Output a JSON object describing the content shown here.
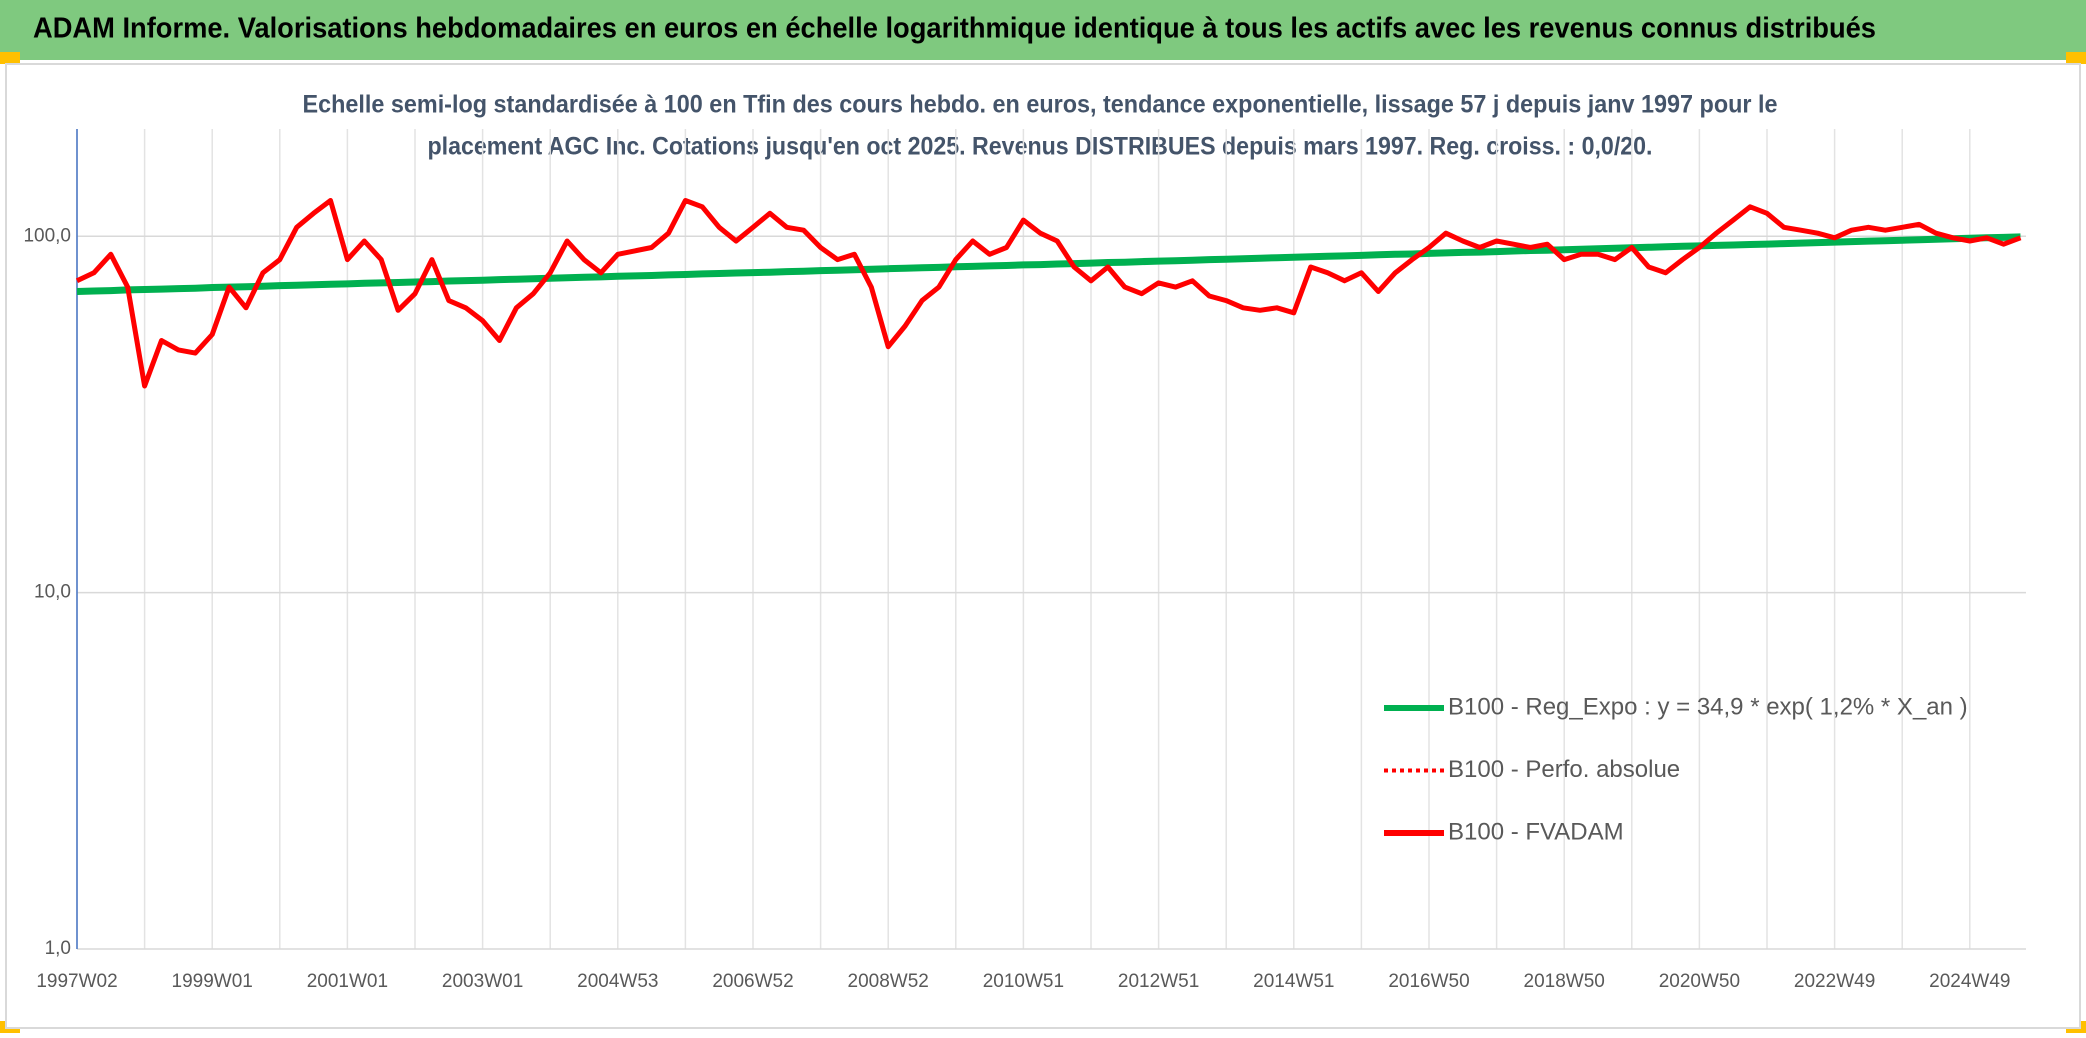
{
  "header": {
    "title": "ADAM Informe. Valorisations hebdomadaires en euros en échelle logarithmique identique à tous les actifs avec les revenus connus distribués"
  },
  "chart_data": {
    "type": "line",
    "subtitle": [
      "Echelle semi-log standardisée à 100 en Tfin des cours hebdo. en euros, tendance exponentielle, lissage 57 j depuis janv 1997 pour le",
      "placement AGC Inc. Cotations jusqu'en oct 2025. Revenus DISTRIBUES depuis mars 1997. Reg. croiss. : 0,0/20."
    ],
    "categories": [
      "1997W02",
      null,
      null,
      null,
      null,
      null,
      null,
      null,
      "1999W01",
      null,
      null,
      null,
      null,
      null,
      null,
      null,
      "2001W01",
      null,
      null,
      null,
      null,
      null,
      null,
      null,
      "2003W01",
      null,
      null,
      null,
      null,
      null,
      null,
      null,
      "2004W53",
      null,
      null,
      null,
      null,
      null,
      null,
      null,
      "2006W52",
      null,
      null,
      null,
      null,
      null,
      null,
      null,
      "2008W52",
      null,
      null,
      null,
      null,
      null,
      null,
      null,
      "2010W51",
      null,
      null,
      null,
      null,
      null,
      null,
      null,
      "2012W51",
      null,
      null,
      null,
      null,
      null,
      null,
      null,
      "2014W51",
      null,
      null,
      null,
      null,
      null,
      null,
      null,
      "2016W50",
      null,
      null,
      null,
      null,
      null,
      null,
      null,
      "2018W50",
      null,
      null,
      null,
      null,
      null,
      null,
      null,
      "2020W50",
      null,
      null,
      null,
      null,
      null,
      null,
      null,
      "2022W49",
      null,
      null,
      null,
      null,
      null,
      null,
      null,
      "2024W49",
      null,
      null,
      null
    ],
    "series": [
      {
        "name": "B100 - Reg_Expo : y = 34,9 * exp( 1,2% *  X_an )",
        "color": "#00b050",
        "line_style": "solid",
        "values": [
          70.0,
          70.2,
          70.4,
          70.7,
          70.9,
          71.1,
          71.3,
          71.5,
          71.8,
          72.0,
          72.2,
          72.4,
          72.7,
          72.9,
          73.1,
          73.3,
          73.5,
          73.8,
          74.0,
          74.2,
          74.4,
          74.6,
          74.9,
          75.1,
          75.3,
          75.6,
          75.8,
          76.0,
          76.2,
          76.5,
          76.7,
          76.9,
          77.2,
          77.4,
          77.6,
          77.9,
          78.1,
          78.4,
          78.6,
          78.9,
          79.1,
          79.3,
          79.6,
          79.8,
          80.1,
          80.3,
          80.6,
          80.8,
          81.1,
          81.3,
          81.6,
          81.8,
          82.1,
          82.3,
          82.6,
          82.8,
          83.1,
          83.3,
          83.6,
          83.8,
          84.1,
          84.4,
          84.6,
          84.9,
          85.2,
          85.4,
          85.7,
          86.0,
          86.2,
          86.5,
          86.8,
          87.1,
          87.3,
          87.6,
          87.9,
          88.1,
          88.4,
          88.7,
          89.0,
          89.2,
          89.5,
          89.8,
          90.1,
          90.3,
          90.6,
          90.9,
          91.2,
          91.4,
          91.7,
          92.0,
          92.2,
          92.5,
          92.8,
          93.1,
          93.4,
          93.7,
          94.0,
          94.3,
          94.5,
          94.8,
          95.1,
          95.4,
          95.7,
          96.0,
          96.3,
          96.6,
          96.9,
          97.2,
          97.5,
          97.8,
          98.1,
          98.4,
          98.7,
          99.0,
          99.3,
          99.6
        ]
      },
      {
        "name": "B100 - Perfo. absolue",
        "color": "#ff0000",
        "line_style": "dotted",
        "values": [
          null,
          null,
          null,
          null,
          null,
          null,
          null,
          null,
          null,
          null,
          null,
          null,
          null,
          null,
          null,
          null,
          null,
          null,
          null,
          null,
          null,
          null,
          null,
          null,
          null,
          null,
          null,
          null,
          null,
          null,
          null,
          null,
          null,
          null,
          null,
          null,
          null,
          null,
          null,
          null,
          null,
          null,
          null,
          null,
          null,
          null,
          null,
          null,
          null,
          null,
          null,
          null,
          null,
          null,
          null,
          null,
          null,
          null,
          null,
          null,
          null,
          null,
          null,
          null,
          null,
          null,
          null,
          null,
          null,
          null,
          null,
          null,
          null,
          null,
          null,
          null,
          null,
          null,
          null,
          null,
          null,
          null,
          null,
          null,
          null,
          null,
          null,
          null,
          null,
          null,
          null,
          null,
          null,
          null,
          null,
          null,
          null,
          null,
          null,
          null,
          null,
          null,
          null,
          null,
          null,
          null,
          null,
          null,
          null,
          null,
          null,
          null,
          null,
          null,
          null,
          null
        ]
      },
      {
        "name": "B100 - FVADAM",
        "color": "#ff0000",
        "line_style": "solid",
        "values": [
          75,
          79,
          89,
          72,
          38,
          51,
          48,
          47,
          53,
          72,
          63,
          79,
          86,
          106,
          116,
          126,
          86,
          97,
          86,
          62,
          69,
          86,
          66,
          63,
          58,
          51,
          63,
          69,
          79,
          97,
          86,
          79,
          89,
          91,
          93,
          102,
          126,
          121,
          106,
          97,
          106,
          116,
          106,
          104,
          93,
          86,
          89,
          72,
          49,
          56,
          66,
          72,
          86,
          97,
          89,
          93,
          111,
          102,
          97,
          82,
          75,
          82,
          72,
          69,
          74,
          72,
          75,
          68,
          66,
          63,
          62,
          63,
          61,
          82,
          79,
          75,
          79,
          70,
          79,
          86,
          93,
          102,
          97,
          93,
          97,
          95,
          93,
          95,
          86,
          89,
          89,
          86,
          93,
          82,
          79,
          86,
          93,
          102,
          111,
          121,
          116,
          106,
          104,
          102,
          99,
          104,
          106,
          104,
          106,
          108,
          102,
          99,
          97,
          99,
          95,
          99
        ]
      }
    ],
    "ylim": [
      1,
      200
    ],
    "log_scale": true,
    "grid": true,
    "legend": "lower right",
    "yticks": [
      {
        "value": 1,
        "label": "1,0"
      },
      {
        "value": 10,
        "label": "10,0"
      },
      {
        "value": 100,
        "label": "100,0"
      }
    ]
  }
}
